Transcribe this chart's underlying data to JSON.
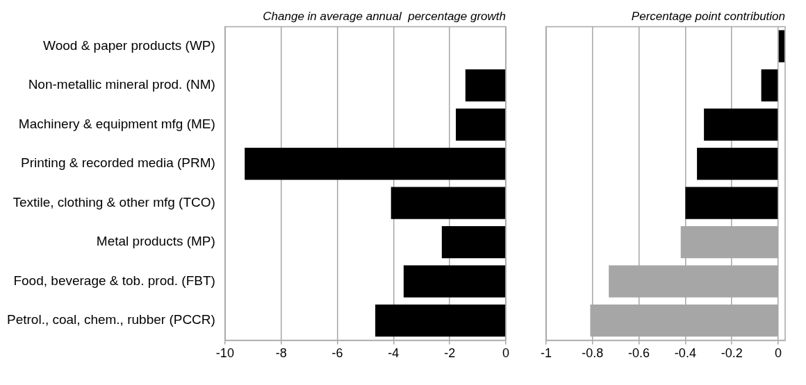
{
  "chart_data": [
    {
      "type": "bar",
      "orientation": "horizontal",
      "title": "Change in average annual  percentage growth",
      "categories": [
        "Wood & paper products (WP)",
        "Non-metallic mineral prod. (NM)",
        "Machinery & equipment mfg (ME)",
        "Printing & recorded media (PRM)",
        "Textile, clothing & other mfg (TCO)",
        "Metal products (MP)",
        "Food, beverage & tob. prod. (FBT)",
        "Petrol., coal, chem., rubber (PCCR)"
      ],
      "values": [
        null,
        -1.44,
        -1.78,
        -9.3,
        -4.09,
        -2.28,
        -3.64,
        -4.65
      ],
      "color": "#000000",
      "xlim": [
        -10,
        0
      ],
      "xticks": [
        -10,
        -8,
        -6,
        -4,
        -2,
        0
      ],
      "grid": "x",
      "legend": false
    },
    {
      "type": "bar",
      "orientation": "horizontal",
      "title": "Percentage point contribution",
      "categories": [
        null,
        null,
        null,
        null,
        null,
        null,
        null,
        null
      ],
      "values": [
        0.027,
        -0.073,
        -0.32,
        -0.35,
        -0.4,
        -0.42,
        -0.73,
        -0.81
      ],
      "colors": [
        "#000000",
        "#000000",
        "#000000",
        "#000000",
        "#000000",
        "#a6a6a6",
        "#a6a6a6",
        "#a6a6a6"
      ],
      "xlim": [
        -1,
        0.03
      ],
      "xticks": [
        -1,
        -0.8,
        -0.6,
        -0.4,
        -0.2,
        0
      ],
      "grid": "x",
      "legend": false,
      "tick_labels": "x"
    }
  ]
}
